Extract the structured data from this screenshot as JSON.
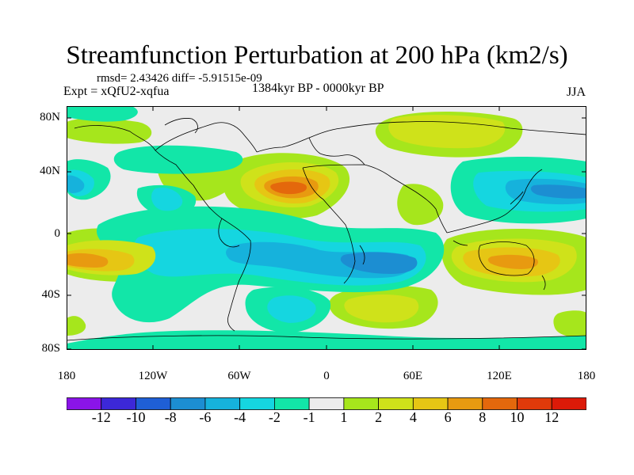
{
  "title": "Streamfunction Perturbation at 200 hPa (km2/s)",
  "stats": "rmsd= 2.43426 diff= -5.91515e-09",
  "experiment": "Expt = xQfU2-xqfua",
  "period": "1384kyr BP - 0000kyr BP",
  "season": "JJA",
  "latitude_labels": [
    "80N",
    "40N",
    "0",
    "40S",
    "80S"
  ],
  "longitude_labels": [
    "180",
    "120W",
    "60W",
    "0",
    "60E",
    "120E",
    "180"
  ],
  "colorbar": {
    "labels": [
      "-12",
      "-10",
      "-8",
      "-6",
      "-4",
      "-2",
      "-1",
      "1",
      "2",
      "4",
      "6",
      "8",
      "10",
      "12"
    ],
    "colors": [
      "#8a14e8",
      "#3c28d8",
      "#1f5fd6",
      "#1c8ed2",
      "#16b2dc",
      "#15d6e0",
      "#12e6a8",
      "#ececec",
      "#a6e61c",
      "#cfe21a",
      "#e6c614",
      "#e89a10",
      "#e4680c",
      "#e03a0a",
      "#dc1a08"
    ]
  }
}
